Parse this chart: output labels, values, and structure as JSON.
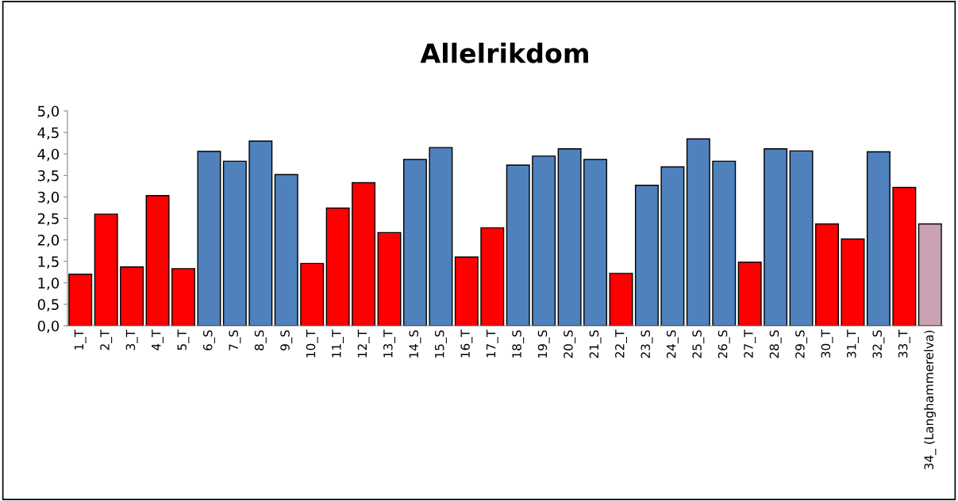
{
  "chart_data": {
    "type": "bar",
    "title": "Allelrikdom",
    "categories": [
      "1_T",
      "2_T",
      "3_T",
      "4_T",
      "5_T",
      "6_S",
      "7_S",
      "8_S",
      "9_S",
      "10_T",
      "11_T",
      "12_T",
      "13_T",
      "14_S",
      "15_S",
      "16_T",
      "17_T",
      "18_S",
      "19_S",
      "20_S",
      "21_S",
      "22_T",
      "23_S",
      "24_S",
      "25_S",
      "26_S",
      "27_T",
      "28_S",
      "29_S",
      "30_T",
      "31_T",
      "32_S",
      "33_T",
      "34_ (Langhammerelva)"
    ],
    "values": [
      1.2,
      2.6,
      1.37,
      3.03,
      1.33,
      4.06,
      3.83,
      4.3,
      3.52,
      1.45,
      2.74,
      3.33,
      2.17,
      3.87,
      4.15,
      1.6,
      2.28,
      3.74,
      3.95,
      4.12,
      3.87,
      1.22,
      3.27,
      3.7,
      4.35,
      3.83,
      1.48,
      4.12,
      4.07,
      2.37,
      2.02,
      4.05,
      3.22,
      2.37
    ],
    "colors": [
      "#ff0000",
      "#ff0000",
      "#ff0000",
      "#ff0000",
      "#ff0000",
      "#4f81bd",
      "#4f81bd",
      "#4f81bd",
      "#4f81bd",
      "#ff0000",
      "#ff0000",
      "#ff0000",
      "#ff0000",
      "#4f81bd",
      "#4f81bd",
      "#ff0000",
      "#ff0000",
      "#4f81bd",
      "#4f81bd",
      "#4f81bd",
      "#4f81bd",
      "#ff0000",
      "#4f81bd",
      "#4f81bd",
      "#4f81bd",
      "#4f81bd",
      "#ff0000",
      "#4f81bd",
      "#4f81bd",
      "#ff0000",
      "#ff0000",
      "#4f81bd",
      "#ff0000",
      "#c9a3b3"
    ],
    "ylim": [
      0,
      5
    ],
    "yticks": [
      {
        "value": 0,
        "label": "0,0"
      },
      {
        "value": 0.5,
        "label": "0,5"
      },
      {
        "value": 1,
        "label": "1,0"
      },
      {
        "value": 1.5,
        "label": "1,5"
      },
      {
        "value": 2,
        "label": "2,0"
      },
      {
        "value": 2.5,
        "label": "2,5"
      },
      {
        "value": 3,
        "label": "3,0"
      },
      {
        "value": 3.5,
        "label": "3,5"
      },
      {
        "value": 4,
        "label": "4,0"
      },
      {
        "value": 4.5,
        "label": "4,5"
      },
      {
        "value": 5,
        "label": "5,0"
      }
    ],
    "grid": false,
    "legend": false
  }
}
